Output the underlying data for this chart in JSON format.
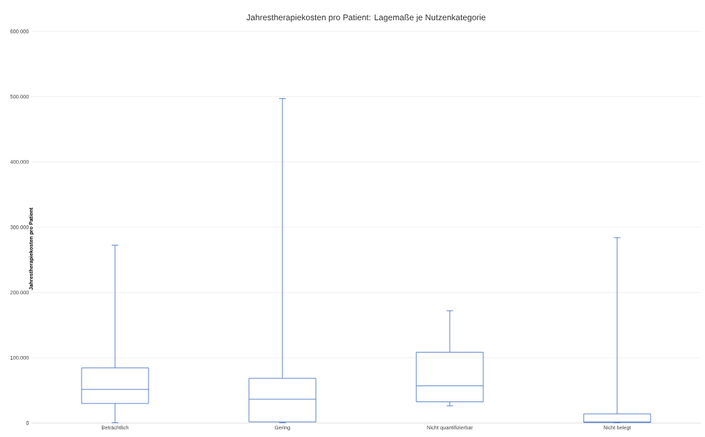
{
  "chart_data": {
    "type": "box",
    "title": "Jahrestherapiekosten pro Patient: Lagemaße je Nutzenkategorie",
    "ylabel": "Jahrestherapiekosten pro Patient",
    "categories": [
      "Beträchtlich",
      "Gering",
      "Nicht quantifizierbar",
      "Nicht belegt"
    ],
    "color": "#4472c4",
    "boxes": [
      {
        "low": 500,
        "q1": 30000,
        "median": 51500,
        "q3": 84500,
        "high": 272500
      },
      {
        "low": 500,
        "q1": 1800,
        "median": 36500,
        "q3": 68500,
        "high": 497000
      },
      {
        "low": 26500,
        "q1": 32500,
        "median": 57000,
        "q3": 108500,
        "high": 172000
      },
      {
        "low": 500,
        "q1": 800,
        "median": 1800,
        "q3": 14000,
        "high": 284000
      }
    ],
    "ylim": [
      0,
      600000
    ],
    "yticks": [
      {
        "value": 0,
        "label": "0"
      },
      {
        "value": 100000,
        "label": "100.000"
      },
      {
        "value": 200000,
        "label": "200.000"
      },
      {
        "value": 300000,
        "label": "300.000"
      },
      {
        "value": 400000,
        "label": "400.000"
      },
      {
        "value": 500000,
        "label": "500.000"
      },
      {
        "value": 600000,
        "label": "600.000"
      }
    ],
    "grid": "y"
  }
}
